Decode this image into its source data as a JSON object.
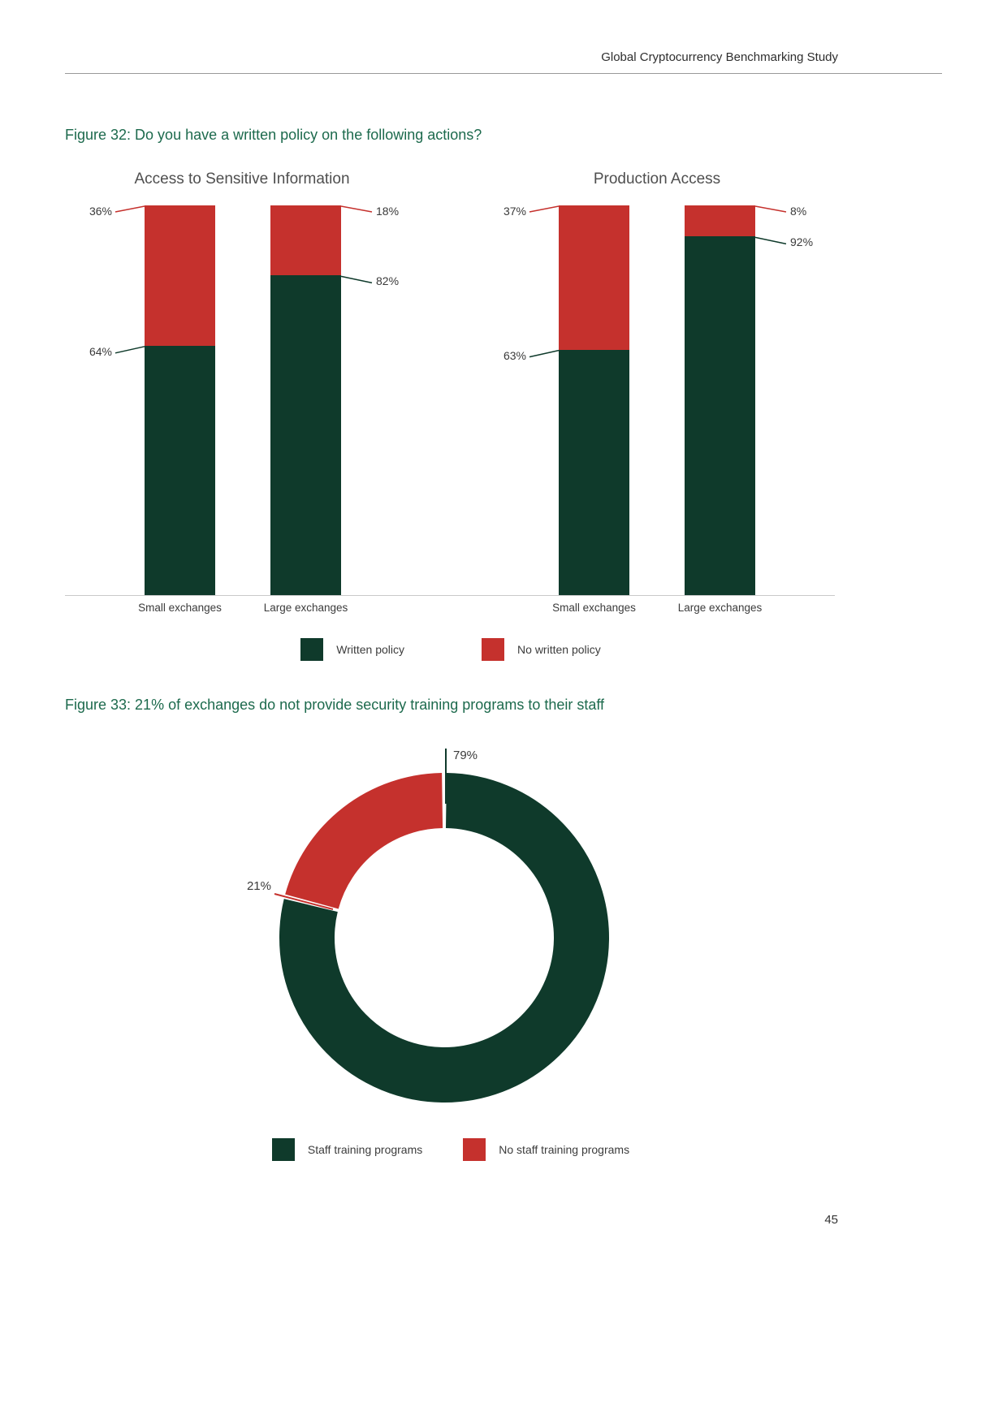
{
  "header": {
    "title": "Global Cryptocurrency Benchmarking Study"
  },
  "page_number": "45",
  "colors": {
    "written_policy_green": "#0f3a2b",
    "no_policy_red": "#c5312d"
  },
  "figure32": {
    "caption": "Figure 32: Do you have a written policy on the following actions?",
    "legend": [
      {
        "label": "Written policy",
        "color": "#0f3a2b"
      },
      {
        "label": "No written policy",
        "color": "#c5312d"
      }
    ]
  },
  "figure33": {
    "caption": "Figure 33: 21% of exchanges do not provide security training programs to their staff",
    "legend": [
      {
        "label": "Staff training programs",
        "color": "#0f3a2b"
      },
      {
        "label": "No staff training programs",
        "color": "#c5312d"
      }
    ]
  },
  "chart_data": [
    {
      "type": "bar",
      "stacking": "percent",
      "title": "Access to Sensitive Information",
      "categories": [
        "Small exchanges",
        "Large exchanges"
      ],
      "series": [
        {
          "name": "Written policy",
          "color": "#0f3a2b",
          "values": [
            64,
            82
          ]
        },
        {
          "name": "No written policy",
          "color": "#c5312d",
          "values": [
            36,
            18
          ]
        }
      ],
      "ylim": [
        0,
        100
      ],
      "value_label_format": "{v}%",
      "grid": false,
      "legend_position": "bottom"
    },
    {
      "type": "bar",
      "stacking": "percent",
      "title": "Production Access",
      "categories": [
        "Small exchanges",
        "Large exchanges"
      ],
      "series": [
        {
          "name": "Written policy",
          "color": "#0f3a2b",
          "values": [
            63,
            92
          ]
        },
        {
          "name": "No written policy",
          "color": "#c5312d",
          "values": [
            37,
            8
          ]
        }
      ],
      "ylim": [
        0,
        100
      ],
      "value_label_format": "{v}%",
      "grid": false,
      "legend_position": "bottom"
    },
    {
      "type": "pie",
      "subtype": "donut",
      "segments": [
        {
          "label": "Staff training programs",
          "value": 79,
          "color": "#0f3a2b"
        },
        {
          "label": "No staff training programs",
          "value": 21,
          "color": "#c5312d"
        }
      ],
      "value_label_format": "{v}%",
      "legend_position": "bottom"
    }
  ]
}
